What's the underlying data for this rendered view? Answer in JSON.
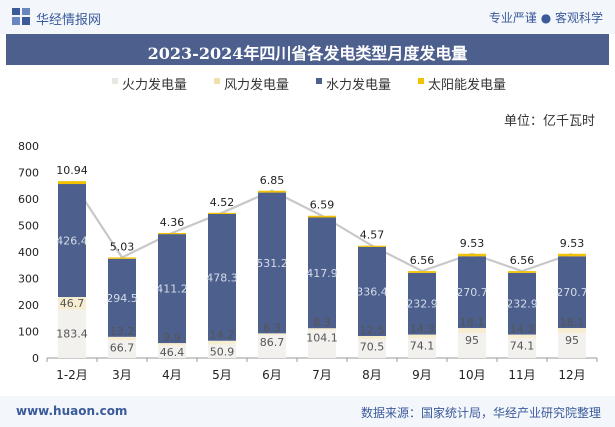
{
  "header": {
    "brand": "华经情报网",
    "slogan": "专业严谨 ● 客观科学"
  },
  "footer": {
    "url": "www.huaon.com",
    "source": "数据来源：国家统计局，华经产业研究院整理"
  },
  "colors": {
    "thermal": "#f3f1ee",
    "wind": "#f7edd0",
    "hydro": "#4c5f8d",
    "solar": "#f2c200",
    "line": "#c8c8c8"
  },
  "chart_data": {
    "type": "bar",
    "stacked": true,
    "title": "2023-2024年四川省各发电类型月度发电量",
    "unit_label": "单位：亿千瓦时",
    "categories": [
      "1-2月",
      "3月",
      "4月",
      "5月",
      "6月",
      "7月",
      "8月",
      "9月",
      "10月",
      "11月",
      "12月"
    ],
    "ylim": [
      0,
      800
    ],
    "yticks": [
      "0",
      "100",
      "200",
      "300",
      "400",
      "500",
      "600",
      "700",
      "800"
    ],
    "legend": [
      "火力发电量",
      "风力发电量",
      "水力发电量",
      "太阳能发电量"
    ],
    "series": [
      {
        "name": "火力发电量",
        "key": "thermal",
        "values": [
          183.4,
          66.7,
          46.4,
          50.9,
          86.7,
          104.1,
          70.5,
          74.1,
          95,
          74.1,
          95
        ],
        "labels": [
          "183.4",
          "66.7",
          "46.4",
          "50.9",
          "86.7",
          "104.1",
          "70.5",
          "74.1",
          "95",
          "74.1",
          "95"
        ]
      },
      {
        "name": "风力发电量",
        "key": "wind",
        "values": [
          46.7,
          13.2,
          9.9,
          14.2,
          6.3,
          8.3,
          12.5,
          14.3,
          18.1,
          14.3,
          18.1
        ],
        "labels": [
          "46.7",
          "13.2",
          "9.9",
          "14.2",
          "6.3",
          "8.3",
          "12.5",
          "14.3",
          "18.1",
          "14.3",
          "18.1"
        ]
      },
      {
        "name": "水力发电量",
        "key": "hydro",
        "values": [
          426.4,
          294.5,
          411.2,
          478.3,
          531.2,
          417.9,
          336.4,
          232.9,
          270.7,
          232.9,
          270.7
        ],
        "labels": [
          "426.4",
          "294.5",
          "411.2",
          "478.3",
          "531.2",
          "417.9",
          "336.4",
          "232.9",
          "270.7",
          "232.9",
          "270.7"
        ]
      },
      {
        "name": "太阳能发电量",
        "key": "solar",
        "values": [
          10.94,
          5.03,
          4.36,
          4.52,
          6.85,
          6.59,
          4.57,
          6.56,
          9.53,
          6.56,
          9.53
        ],
        "labels": [
          "10.94",
          "5.03",
          "4.36",
          "4.52",
          "6.85",
          "6.59",
          "4.57",
          "6.56",
          "9.53",
          "6.56",
          "9.53"
        ]
      }
    ]
  }
}
